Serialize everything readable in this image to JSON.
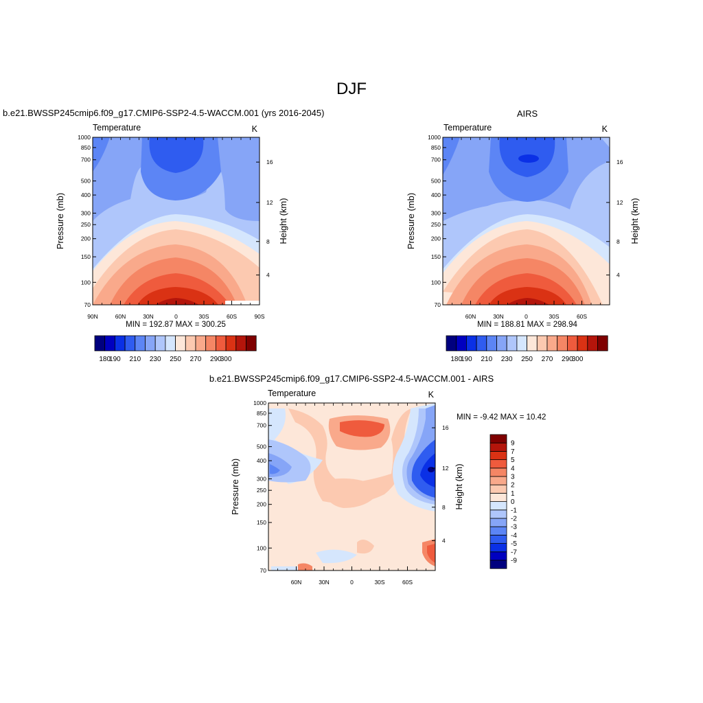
{
  "figure_title": "DJF",
  "palette": [
    "#00007f",
    "#0000c0",
    "#0a30e6",
    "#2f5cf0",
    "#5c85f5",
    "#86a5f7",
    "#afc6fb",
    "#d5e6fd",
    "#fde7d9",
    "#fcc9b0",
    "#f9a98b",
    "#f58665",
    "#ef5b3d",
    "#da3214",
    "#b4150b",
    "#7f0000"
  ],
  "chart_data": [
    {
      "type": "contour",
      "title_left": "b.e21.BWSSP245cmip6.f09_g17.CMIP6-SSP2-4.5-WACCM.001 (yrs 2016-2045)",
      "title_right": "",
      "variable": "Temperature",
      "units": "K",
      "ylabel": "Pressure (mb)",
      "y2label": "Height (km)",
      "x_ticks": [
        "90N",
        "60N",
        "30N",
        "0",
        "30S",
        "60S",
        "90S"
      ],
      "y_ticks": [
        "70",
        "100",
        "150",
        "200",
        "250",
        "300",
        "400",
        "500",
        "700",
        "850",
        "1000"
      ],
      "y2_ticks": [
        "16",
        "12",
        "8",
        "4"
      ],
      "stats": "MIN = 192.87  MAX = 300.25",
      "colorbar_ticks": [
        "180",
        "190",
        "210",
        "230",
        "250",
        "270",
        "290",
        "300"
      ],
      "lat_range": [
        -90,
        90
      ],
      "pressure_range": [
        1000,
        70
      ],
      "min": 192.87,
      "max": 300.25
    },
    {
      "type": "contour",
      "title_left": "",
      "title_right": "AIRS",
      "variable": "Temperature",
      "units": "K",
      "ylabel": "Pressure (mb)",
      "y2label": "Height (km)",
      "x_ticks": [
        "60N",
        "30N",
        "0",
        "30S",
        "60S"
      ],
      "y_ticks": [
        "70",
        "100",
        "150",
        "200",
        "250",
        "300",
        "400",
        "500",
        "700",
        "850",
        "1000"
      ],
      "y2_ticks": [
        "16",
        "12",
        "8",
        "4"
      ],
      "stats": "MIN = 188.81  MAX = 298.94",
      "colorbar_ticks": [
        "180",
        "190",
        "210",
        "230",
        "250",
        "270",
        "290",
        "300"
      ],
      "min": 188.81,
      "max": 298.94
    },
    {
      "type": "contour",
      "title_center": "b.e21.BWSSP245cmip6.f09_g17.CMIP6-SSP2-4.5-WACCM.001 - AIRS",
      "variable": "Temperature",
      "units": "K",
      "ylabel": "Pressure (mb)",
      "y2label": "Height (km)",
      "x_ticks": [
        "60N",
        "30N",
        "0",
        "30S",
        "60S"
      ],
      "y_ticks": [
        "70",
        "100",
        "150",
        "200",
        "250",
        "300",
        "400",
        "500",
        "700",
        "850",
        "1000"
      ],
      "y2_ticks": [
        "16",
        "12",
        "8",
        "4"
      ],
      "stats": "MIN =  -9.42  MAX =  10.42",
      "colorbar_ticks": [
        "9",
        "7",
        "5",
        "4",
        "3",
        "2",
        "1",
        "0",
        "-1",
        "-2",
        "-3",
        "-4",
        "-5",
        "-7",
        "-9"
      ],
      "min": -9.42,
      "max": 10.42
    }
  ]
}
